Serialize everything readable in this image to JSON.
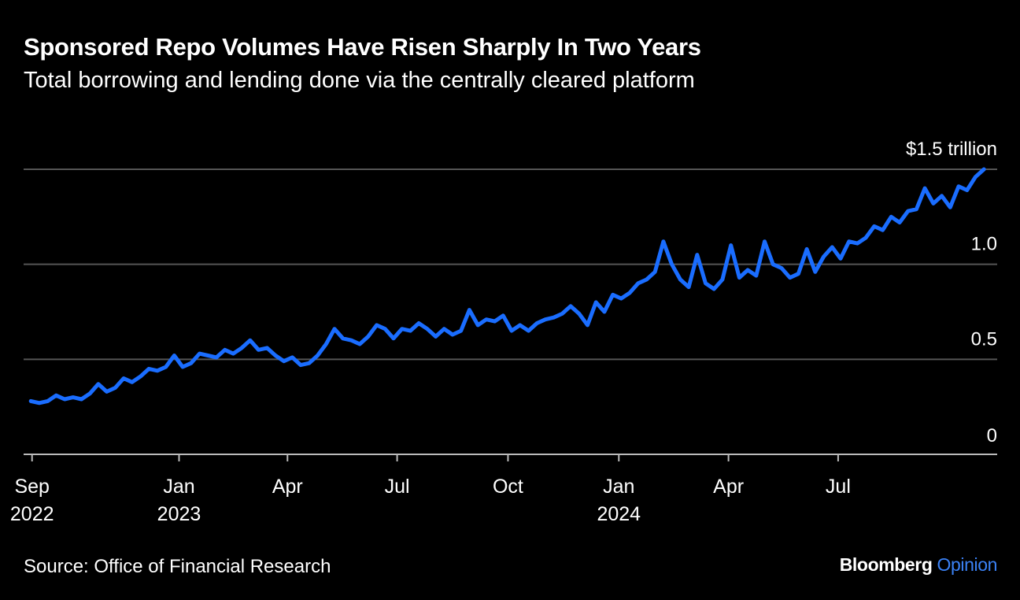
{
  "title": "Sponsored Repo Volumes Have Risen Sharply In Two Years",
  "subtitle": "Total borrowing and lending done via the centrally cleared platform",
  "source": "Source: Office of Financial Research",
  "brand": {
    "name": "Bloomberg",
    "suffix": "Opinion"
  },
  "colors": {
    "background": "#000000",
    "line": "#1a6dff",
    "grid": "#555555",
    "brand_accent": "#3b82f6"
  },
  "chart_data": {
    "type": "line",
    "title": "Sponsored Repo Volumes Have Risen Sharply In Two Years",
    "subtitle": "Total borrowing and lending done via the centrally cleared platform",
    "xlabel": "",
    "ylabel": "",
    "unit": "$ trillion",
    "ylim": [
      0,
      1.5
    ],
    "xlim": [
      "2022-08-25",
      "2024-11-10"
    ],
    "grid": true,
    "y_ticks": [
      {
        "value": 0,
        "label": "0"
      },
      {
        "value": 0.5,
        "label": "0.5"
      },
      {
        "value": 1.0,
        "label": "1.0"
      },
      {
        "value": 1.5,
        "label": "$1.5 trillion"
      }
    ],
    "x_ticks": [
      {
        "date": "2022-09-01",
        "label": "Sep",
        "year": "2022"
      },
      {
        "date": "2023-01-01",
        "label": "Jan",
        "year": "2023"
      },
      {
        "date": "2023-04-01",
        "label": "Apr",
        "year": ""
      },
      {
        "date": "2023-07-01",
        "label": "Jul",
        "year": ""
      },
      {
        "date": "2023-10-01",
        "label": "Oct",
        "year": ""
      },
      {
        "date": "2024-01-01",
        "label": "Jan",
        "year": "2024"
      },
      {
        "date": "2024-04-01",
        "label": "Apr",
        "year": ""
      },
      {
        "date": "2024-07-01",
        "label": "Jul",
        "year": ""
      }
    ],
    "series": [
      {
        "values": [
          [
            "2022-08-31",
            0.28
          ],
          [
            "2022-09-07",
            0.27
          ],
          [
            "2022-09-14",
            0.28
          ],
          [
            "2022-09-21",
            0.31
          ],
          [
            "2022-09-28",
            0.29
          ],
          [
            "2022-10-05",
            0.3
          ],
          [
            "2022-10-12",
            0.29
          ],
          [
            "2022-10-19",
            0.32
          ],
          [
            "2022-10-26",
            0.37
          ],
          [
            "2022-11-02",
            0.33
          ],
          [
            "2022-11-09",
            0.35
          ],
          [
            "2022-11-16",
            0.4
          ],
          [
            "2022-11-23",
            0.38
          ],
          [
            "2022-11-30",
            0.41
          ],
          [
            "2022-12-07",
            0.45
          ],
          [
            "2022-12-14",
            0.44
          ],
          [
            "2022-12-21",
            0.46
          ],
          [
            "2022-12-28",
            0.52
          ],
          [
            "2023-01-04",
            0.46
          ],
          [
            "2023-01-11",
            0.48
          ],
          [
            "2023-01-18",
            0.53
          ],
          [
            "2023-01-25",
            0.52
          ],
          [
            "2023-02-01",
            0.51
          ],
          [
            "2023-02-08",
            0.55
          ],
          [
            "2023-02-15",
            0.53
          ],
          [
            "2023-02-22",
            0.56
          ],
          [
            "2023-03-01",
            0.6
          ],
          [
            "2023-03-08",
            0.55
          ],
          [
            "2023-03-15",
            0.56
          ],
          [
            "2023-03-22",
            0.52
          ],
          [
            "2023-03-29",
            0.49
          ],
          [
            "2023-04-05",
            0.51
          ],
          [
            "2023-04-12",
            0.47
          ],
          [
            "2023-04-19",
            0.48
          ],
          [
            "2023-04-26",
            0.52
          ],
          [
            "2023-05-03",
            0.58
          ],
          [
            "2023-05-10",
            0.66
          ],
          [
            "2023-05-17",
            0.61
          ],
          [
            "2023-05-24",
            0.6
          ],
          [
            "2023-05-31",
            0.58
          ],
          [
            "2023-06-07",
            0.62
          ],
          [
            "2023-06-14",
            0.68
          ],
          [
            "2023-06-21",
            0.66
          ],
          [
            "2023-06-28",
            0.61
          ],
          [
            "2023-07-05",
            0.66
          ],
          [
            "2023-07-12",
            0.65
          ],
          [
            "2023-07-19",
            0.69
          ],
          [
            "2023-07-26",
            0.66
          ],
          [
            "2023-08-02",
            0.62
          ],
          [
            "2023-08-09",
            0.66
          ],
          [
            "2023-08-16",
            0.63
          ],
          [
            "2023-08-23",
            0.65
          ],
          [
            "2023-08-30",
            0.76
          ],
          [
            "2023-09-06",
            0.68
          ],
          [
            "2023-09-13",
            0.71
          ],
          [
            "2023-09-20",
            0.7
          ],
          [
            "2023-09-27",
            0.73
          ],
          [
            "2023-10-04",
            0.65
          ],
          [
            "2023-10-11",
            0.68
          ],
          [
            "2023-10-18",
            0.65
          ],
          [
            "2023-10-25",
            0.69
          ],
          [
            "2023-11-01",
            0.71
          ],
          [
            "2023-11-08",
            0.72
          ],
          [
            "2023-11-15",
            0.74
          ],
          [
            "2023-11-22",
            0.78
          ],
          [
            "2023-11-29",
            0.74
          ],
          [
            "2023-12-06",
            0.68
          ],
          [
            "2023-12-13",
            0.8
          ],
          [
            "2023-12-20",
            0.75
          ],
          [
            "2023-12-27",
            0.84
          ],
          [
            "2024-01-03",
            0.82
          ],
          [
            "2024-01-10",
            0.85
          ],
          [
            "2024-01-17",
            0.9
          ],
          [
            "2024-01-24",
            0.92
          ],
          [
            "2024-01-31",
            0.96
          ],
          [
            "2024-02-07",
            1.12
          ],
          [
            "2024-02-14",
            1.0
          ],
          [
            "2024-02-21",
            0.92
          ],
          [
            "2024-02-28",
            0.88
          ],
          [
            "2024-03-06",
            1.05
          ],
          [
            "2024-03-13",
            0.9
          ],
          [
            "2024-03-20",
            0.87
          ],
          [
            "2024-03-27",
            0.92
          ],
          [
            "2024-04-03",
            1.1
          ],
          [
            "2024-04-10",
            0.93
          ],
          [
            "2024-04-17",
            0.97
          ],
          [
            "2024-04-24",
            0.94
          ],
          [
            "2024-05-01",
            1.12
          ],
          [
            "2024-05-08",
            1.0
          ],
          [
            "2024-05-15",
            0.98
          ],
          [
            "2024-05-22",
            0.93
          ],
          [
            "2024-05-29",
            0.95
          ],
          [
            "2024-06-05",
            1.08
          ],
          [
            "2024-06-12",
            0.96
          ],
          [
            "2024-06-19",
            1.04
          ],
          [
            "2024-06-26",
            1.09
          ],
          [
            "2024-07-03",
            1.03
          ],
          [
            "2024-07-10",
            1.12
          ],
          [
            "2024-07-17",
            1.11
          ],
          [
            "2024-07-24",
            1.14
          ],
          [
            "2024-07-31",
            1.2
          ],
          [
            "2024-08-07",
            1.18
          ],
          [
            "2024-08-14",
            1.25
          ],
          [
            "2024-08-21",
            1.22
          ],
          [
            "2024-08-28",
            1.28
          ],
          [
            "2024-09-04",
            1.29
          ],
          [
            "2024-09-11",
            1.4
          ],
          [
            "2024-09-18",
            1.32
          ],
          [
            "2024-09-25",
            1.36
          ],
          [
            "2024-10-02",
            1.3
          ],
          [
            "2024-10-09",
            1.41
          ],
          [
            "2024-10-16",
            1.39
          ],
          [
            "2024-10-23",
            1.46
          ],
          [
            "2024-10-30",
            1.5
          ]
        ]
      }
    ]
  }
}
